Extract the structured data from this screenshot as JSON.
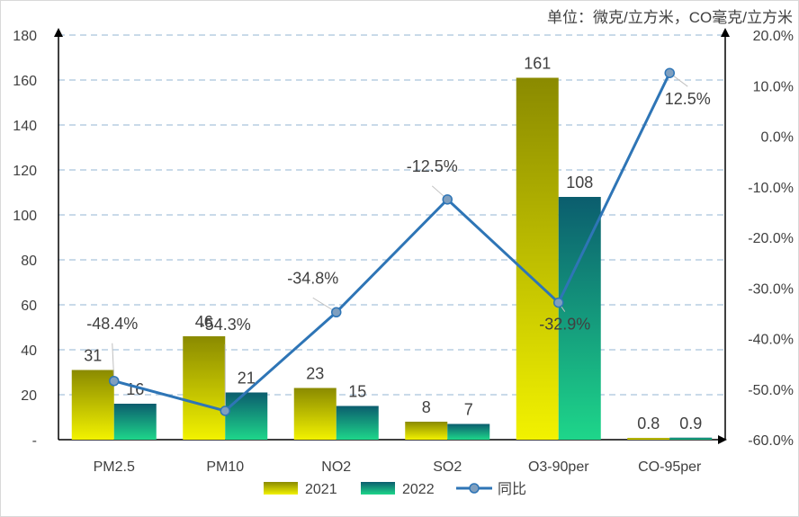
{
  "chart_data": {
    "type": "bar",
    "unit_label": "单位：微克/立方米，CO毫克/立方米",
    "categories": [
      "PM2.5",
      "PM10",
      "NO2",
      "SO2",
      "O3-90per",
      "CO-95per"
    ],
    "series": [
      {
        "name": "2021",
        "kind": "bar",
        "axis": "left",
        "values": [
          31,
          46,
          23,
          8,
          161,
          0.8
        ],
        "labels": [
          "31",
          "46",
          "23",
          "8",
          "161",
          "0.8"
        ],
        "colors": [
          "#8a8a00",
          "#f2f200"
        ]
      },
      {
        "name": "2022",
        "kind": "bar",
        "axis": "left",
        "values": [
          16,
          21,
          15,
          7,
          108,
          0.9
        ],
        "labels": [
          "16",
          "21",
          "15",
          "7",
          "108",
          "0.9"
        ],
        "colors": [
          "#0b5d6e",
          "#1ed68a"
        ]
      },
      {
        "name": "同比",
        "kind": "line",
        "axis": "right",
        "values": [
          -48.4,
          -54.3,
          -34.8,
          -12.5,
          -32.9,
          12.5
        ],
        "labels": [
          "-48.4%",
          "-54.3%",
          "-34.8%",
          "-12.5%",
          "-32.9%",
          "12.5%"
        ],
        "color": "#2e75b6",
        "marker_color": "#7f9fbf"
      }
    ],
    "y_left": {
      "min": 0,
      "max": 180,
      "ticks": [
        "-",
        "20",
        "40",
        "60",
        "80",
        "100",
        "120",
        "140",
        "160",
        "180"
      ]
    },
    "y_right": {
      "min": -60,
      "max": 20,
      "ticks": [
        "-60.0%",
        "-50.0%",
        "-40.0%",
        "-30.0%",
        "-20.0%",
        "-10.0%",
        "0.0%",
        "10.0%",
        "20.0%"
      ]
    },
    "grid": true,
    "legend_position": "bottom"
  }
}
